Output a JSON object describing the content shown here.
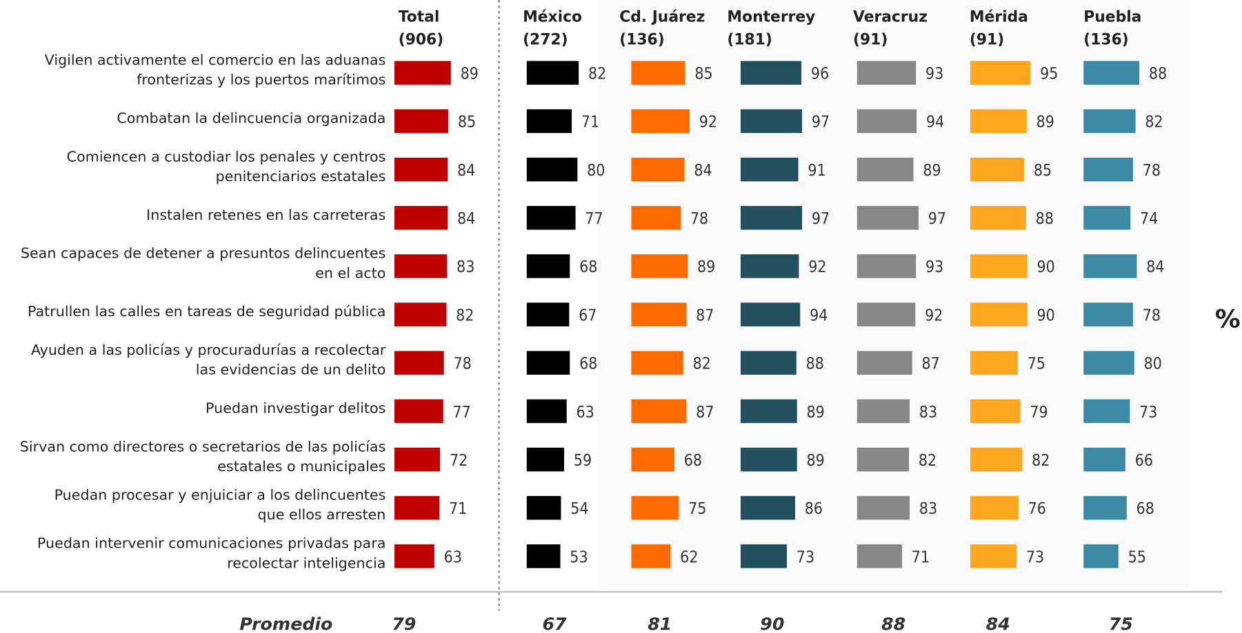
{
  "chart_data": {
    "type": "bar",
    "orientation": "horizontal",
    "unit_label": "%",
    "average_label": "Promedio",
    "xlim": [
      0,
      100
    ],
    "categories": [
      "Vigilen activamente el comercio en las aduanas\nfronterizas y los puertos marítimos",
      "Combatan la delincuencia organizada",
      "Comiencen a custodiar los penales y centros\npenitenciarios estatales",
      "Instalen retenes en las carreteras",
      "Sean capaces de detener a presuntos delincuentes\nen el acto",
      "Patrullen las calles en tareas de seguridad pública",
      "Ayuden a las policías y procuradurías a recolectar\nlas evidencias de un delito",
      "Puedan investigar delitos",
      "Sirvan como directores o secretarios de las policías\nestatales o municipales",
      "Puedan procesar y enjuiciar a los delincuentes\nque ellos arresten",
      "Puedan intervenir comunicaciones privadas para\nrecolectar inteligencia"
    ],
    "series": [
      {
        "name": "Total",
        "sample": "(906)",
        "color": "#c00000",
        "average": 79,
        "values": [
          89,
          85,
          84,
          84,
          83,
          82,
          78,
          77,
          72,
          71,
          63
        ]
      },
      {
        "name": "México",
        "sample": "(272)",
        "color": "#000000",
        "average": 67,
        "values": [
          82,
          71,
          80,
          77,
          68,
          67,
          68,
          63,
          59,
          54,
          53
        ]
      },
      {
        "name": "Cd. Juárez",
        "sample": "(136)",
        "color": "#ff6a00",
        "average": 81,
        "values": [
          85,
          92,
          84,
          78,
          89,
          87,
          82,
          87,
          68,
          75,
          62
        ]
      },
      {
        "name": "Monterrey",
        "sample": "(181)",
        "color": "#23505f",
        "average": 90,
        "values": [
          96,
          97,
          91,
          97,
          92,
          94,
          88,
          89,
          89,
          86,
          73
        ]
      },
      {
        "name": "Veracruz",
        "sample": "(91)",
        "color": "#878787",
        "average": 88,
        "values": [
          93,
          94,
          89,
          97,
          93,
          92,
          87,
          83,
          82,
          83,
          71
        ]
      },
      {
        "name": "Mérida",
        "sample": "(91)",
        "color": "#ffa620",
        "average": 84,
        "values": [
          95,
          89,
          85,
          88,
          90,
          90,
          75,
          79,
          82,
          76,
          73
        ]
      },
      {
        "name": "Puebla",
        "sample": "(136)",
        "color": "#3a8aa6",
        "average": 75,
        "values": [
          88,
          82,
          78,
          74,
          84,
          78,
          80,
          73,
          66,
          68,
          55
        ]
      }
    ]
  }
}
